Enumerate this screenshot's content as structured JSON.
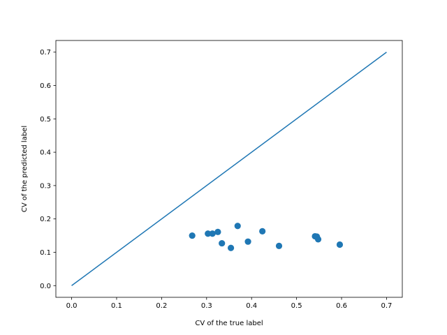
{
  "chart_data": {
    "type": "scatter",
    "title": "",
    "xlabel": "CV of the true label",
    "ylabel": "CV of the predicted label",
    "xlim": [
      -0.035,
      0.735
    ],
    "ylim": [
      -0.035,
      0.735
    ],
    "xticks": [
      0.0,
      0.1,
      0.2,
      0.3,
      0.4,
      0.5,
      0.6,
      0.7
    ],
    "xtick_labels": [
      "0.0",
      "0.1",
      "0.2",
      "0.3",
      "0.4",
      "0.5",
      "0.6",
      "0.7"
    ],
    "yticks": [
      0.0,
      0.1,
      0.2,
      0.3,
      0.4,
      0.5,
      0.6,
      0.7
    ],
    "ytick_labels": [
      "0.0",
      "0.1",
      "0.2",
      "0.3",
      "0.4",
      "0.5",
      "0.6",
      "0.7"
    ],
    "grid": false,
    "series": [
      {
        "type": "line",
        "color": "#1f77b4",
        "x": [
          0.0,
          0.7
        ],
        "y": [
          0.0,
          0.7
        ]
      },
      {
        "type": "scatter",
        "color": "#1f77b4",
        "x": [
          0.268,
          0.303,
          0.313,
          0.325,
          0.334,
          0.354,
          0.369,
          0.392,
          0.424,
          0.461,
          0.541,
          0.545,
          0.548,
          0.596
        ],
        "y": [
          0.15,
          0.156,
          0.156,
          0.161,
          0.127,
          0.113,
          0.179,
          0.132,
          0.163,
          0.119,
          0.148,
          0.147,
          0.139,
          0.123
        ]
      }
    ]
  }
}
